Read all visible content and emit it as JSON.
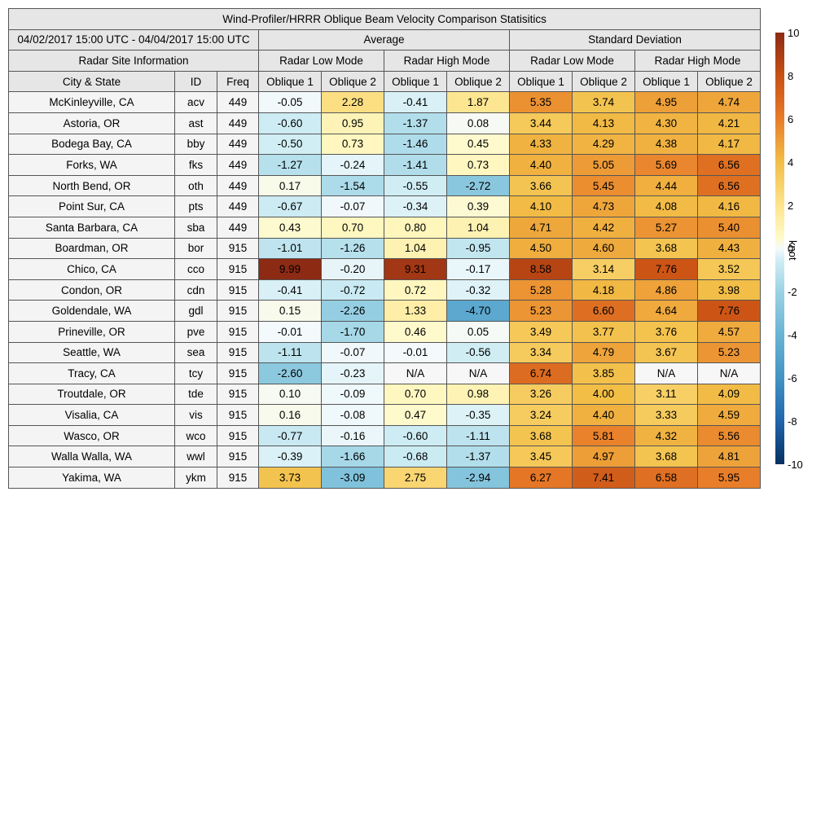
{
  "title": "Wind-Profiler/HRRR Oblique Beam Velocity Comparison Statisitics",
  "date_range": "04/02/2017 15:00 UTC - 04/04/2017 15:00 UTC",
  "group_average": "Average",
  "group_std": "Standard Deviation",
  "radar_site_info": "Radar Site Information",
  "mode_low": "Radar Low Mode",
  "mode_high": "Radar High Mode",
  "col_city": "City & State",
  "col_id": "ID",
  "col_freq": "Freq",
  "col_obl1": "Oblique 1",
  "col_obl2": "Oblique 2",
  "colorbar_unit": "knot",
  "colorbar_ticks": [
    "10",
    "8",
    "6",
    "4",
    "2",
    "0",
    "-2",
    "-4",
    "-6",
    "-8",
    "-10"
  ],
  "chart_data": {
    "type": "table",
    "title": "Wind-Profiler/HRRR Oblique Beam Velocity Comparison Statisitics",
    "colorbar": {
      "min": -10,
      "max": 10,
      "unit": "knot",
      "palette": "diverging blue-white-yellow-orange-red"
    },
    "columns": [
      "City & State",
      "ID",
      "Freq",
      "Avg Low Obl 1",
      "Avg Low Obl 2",
      "Avg High Obl 1",
      "Avg High Obl 2",
      "Std Low Obl 1",
      "Std Low Obl 2",
      "Std High Obl 1",
      "Std High Obl 2"
    ],
    "rows": [
      {
        "city": "McKinleyville, CA",
        "id": "acv",
        "freq": "449",
        "avg": [
          "-0.05",
          "2.28",
          "-0.41",
          "1.87"
        ],
        "std": [
          "5.35",
          "3.74",
          "4.95",
          "4.74"
        ]
      },
      {
        "city": "Astoria, OR",
        "id": "ast",
        "freq": "449",
        "avg": [
          "-0.60",
          "0.95",
          "-1.37",
          "0.08"
        ],
        "std": [
          "3.44",
          "4.13",
          "4.30",
          "4.21"
        ]
      },
      {
        "city": "Bodega Bay, CA",
        "id": "bby",
        "freq": "449",
        "avg": [
          "-0.50",
          "0.73",
          "-1.46",
          "0.45"
        ],
        "std": [
          "4.33",
          "4.29",
          "4.38",
          "4.17"
        ]
      },
      {
        "city": "Forks, WA",
        "id": "fks",
        "freq": "449",
        "avg": [
          "-1.27",
          "-0.24",
          "-1.41",
          "0.73"
        ],
        "std": [
          "4.40",
          "5.05",
          "5.69",
          "6.56"
        ]
      },
      {
        "city": "North Bend, OR",
        "id": "oth",
        "freq": "449",
        "avg": [
          "0.17",
          "-1.54",
          "-0.55",
          "-2.72"
        ],
        "std": [
          "3.66",
          "5.45",
          "4.44",
          "6.56"
        ]
      },
      {
        "city": "Point Sur, CA",
        "id": "pts",
        "freq": "449",
        "avg": [
          "-0.67",
          "-0.07",
          "-0.34",
          "0.39"
        ],
        "std": [
          "4.10",
          "4.73",
          "4.08",
          "4.16"
        ]
      },
      {
        "city": "Santa Barbara, CA",
        "id": "sba",
        "freq": "449",
        "avg": [
          "0.43",
          "0.70",
          "0.80",
          "1.04"
        ],
        "std": [
          "4.71",
          "4.42",
          "5.27",
          "5.40"
        ]
      },
      {
        "city": "Boardman, OR",
        "id": "bor",
        "freq": "915",
        "avg": [
          "-1.01",
          "-1.26",
          "1.04",
          "-0.95"
        ],
        "std": [
          "4.50",
          "4.60",
          "3.68",
          "4.43"
        ]
      },
      {
        "city": "Chico, CA",
        "id": "cco",
        "freq": "915",
        "avg": [
          "9.99",
          "-0.20",
          "9.31",
          "-0.17"
        ],
        "std": [
          "8.58",
          "3.14",
          "7.76",
          "3.52"
        ]
      },
      {
        "city": "Condon, OR",
        "id": "cdn",
        "freq": "915",
        "avg": [
          "-0.41",
          "-0.72",
          "0.72",
          "-0.32"
        ],
        "std": [
          "5.28",
          "4.18",
          "4.86",
          "3.98"
        ]
      },
      {
        "city": "Goldendale, WA",
        "id": "gdl",
        "freq": "915",
        "avg": [
          "0.15",
          "-2.26",
          "1.33",
          "-4.70"
        ],
        "std": [
          "5.23",
          "6.60",
          "4.64",
          "7.76"
        ]
      },
      {
        "city": "Prineville, OR",
        "id": "pve",
        "freq": "915",
        "avg": [
          "-0.01",
          "-1.70",
          "0.46",
          "0.05"
        ],
        "std": [
          "3.49",
          "3.77",
          "3.76",
          "4.57"
        ]
      },
      {
        "city": "Seattle, WA",
        "id": "sea",
        "freq": "915",
        "avg": [
          "-1.11",
          "-0.07",
          "-0.01",
          "-0.56"
        ],
        "std": [
          "3.34",
          "4.79",
          "3.67",
          "5.23"
        ]
      },
      {
        "city": "Tracy, CA",
        "id": "tcy",
        "freq": "915",
        "avg": [
          "-2.60",
          "-0.23",
          "N/A",
          "N/A"
        ],
        "std": [
          "6.74",
          "3.85",
          "N/A",
          "N/A"
        ]
      },
      {
        "city": "Troutdale, OR",
        "id": "tde",
        "freq": "915",
        "avg": [
          "0.10",
          "-0.09",
          "0.70",
          "0.98"
        ],
        "std": [
          "3.26",
          "4.00",
          "3.11",
          "4.09"
        ]
      },
      {
        "city": "Visalia, CA",
        "id": "vis",
        "freq": "915",
        "avg": [
          "0.16",
          "-0.08",
          "0.47",
          "-0.35"
        ],
        "std": [
          "3.24",
          "4.40",
          "3.33",
          "4.59"
        ]
      },
      {
        "city": "Wasco, OR",
        "id": "wco",
        "freq": "915",
        "avg": [
          "-0.77",
          "-0.16",
          "-0.60",
          "-1.11"
        ],
        "std": [
          "3.68",
          "5.81",
          "4.32",
          "5.56"
        ]
      },
      {
        "city": "Walla Walla, WA",
        "id": "wwl",
        "freq": "915",
        "avg": [
          "-0.39",
          "-1.66",
          "-0.68",
          "-1.37"
        ],
        "std": [
          "3.45",
          "4.97",
          "3.68",
          "4.81"
        ]
      },
      {
        "city": "Yakima, WA",
        "id": "ykm",
        "freq": "915",
        "avg": [
          "3.73",
          "-3.09",
          "2.75",
          "-2.94"
        ],
        "std": [
          "6.27",
          "7.41",
          "6.58",
          "5.95"
        ]
      }
    ]
  }
}
